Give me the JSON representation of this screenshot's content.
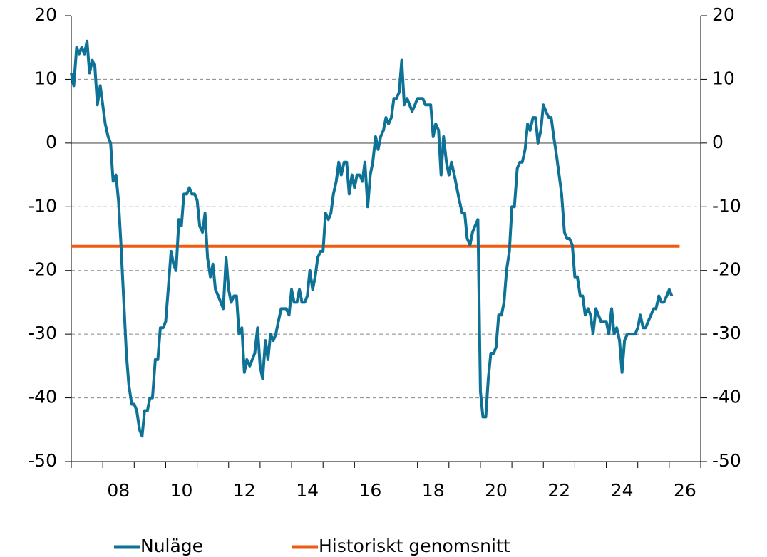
{
  "chart_data": {
    "type": "line",
    "xlim": [
      2007,
      2027
    ],
    "xticks": [
      {
        "value": 2008.5,
        "label": "08"
      },
      {
        "value": 2010.5,
        "label": "10"
      },
      {
        "value": 2012.5,
        "label": "12"
      },
      {
        "value": 2014.5,
        "label": "14"
      },
      {
        "value": 2016.5,
        "label": "16"
      },
      {
        "value": 2018.5,
        "label": "18"
      },
      {
        "value": 2020.5,
        "label": "20"
      },
      {
        "value": 2022.5,
        "label": "22"
      },
      {
        "value": 2024.5,
        "label": "24"
      },
      {
        "value": 2026.5,
        "label": "26"
      }
    ],
    "xtick_marks": [
      2007,
      2008,
      2009,
      2010,
      2011,
      2012,
      2013,
      2014,
      2015,
      2016,
      2017,
      2018,
      2019,
      2020,
      2021,
      2022,
      2023,
      2024,
      2025,
      2026,
      2027
    ],
    "ylim": [
      -50,
      20
    ],
    "yticks": [
      -50,
      -40,
      -30,
      -20,
      -10,
      0,
      10,
      20
    ],
    "y2lim": [
      -50,
      20
    ],
    "y2ticks": [
      -50,
      -40,
      -30,
      -20,
      -10,
      0,
      10,
      20
    ],
    "grid": true,
    "legend": "bottom",
    "series": [
      {
        "name": "Nuläge",
        "color": "#0e7196",
        "x": [
          2007.0,
          2007.08,
          2007.17,
          2007.25,
          2007.33,
          2007.42,
          2007.5,
          2007.58,
          2007.67,
          2007.75,
          2007.83,
          2007.92,
          2008.0,
          2008.08,
          2008.17,
          2008.25,
          2008.33,
          2008.42,
          2008.5,
          2008.58,
          2008.67,
          2008.75,
          2008.83,
          2008.92,
          2009.0,
          2009.08,
          2009.17,
          2009.25,
          2009.33,
          2009.42,
          2009.5,
          2009.58,
          2009.67,
          2009.75,
          2009.83,
          2009.92,
          2010.0,
          2010.08,
          2010.17,
          2010.25,
          2010.33,
          2010.42,
          2010.5,
          2010.58,
          2010.67,
          2010.75,
          2010.83,
          2010.92,
          2011.0,
          2011.08,
          2011.17,
          2011.25,
          2011.33,
          2011.42,
          2011.5,
          2011.58,
          2011.67,
          2011.75,
          2011.83,
          2011.92,
          2012.0,
          2012.08,
          2012.17,
          2012.25,
          2012.33,
          2012.42,
          2012.5,
          2012.58,
          2012.67,
          2012.75,
          2012.83,
          2012.92,
          2013.0,
          2013.08,
          2013.17,
          2013.25,
          2013.33,
          2013.42,
          2013.5,
          2013.58,
          2013.67,
          2013.75,
          2013.83,
          2013.92,
          2014.0,
          2014.08,
          2014.17,
          2014.25,
          2014.33,
          2014.42,
          2014.5,
          2014.58,
          2014.67,
          2014.75,
          2014.83,
          2014.92,
          2015.0,
          2015.08,
          2015.17,
          2015.25,
          2015.33,
          2015.42,
          2015.5,
          2015.58,
          2015.67,
          2015.75,
          2015.83,
          2015.92,
          2016.0,
          2016.08,
          2016.17,
          2016.25,
          2016.33,
          2016.42,
          2016.5,
          2016.58,
          2016.67,
          2016.75,
          2016.83,
          2016.92,
          2017.0,
          2017.08,
          2017.17,
          2017.25,
          2017.33,
          2017.42,
          2017.5,
          2017.58,
          2017.67,
          2017.75,
          2017.83,
          2017.92,
          2018.0,
          2018.08,
          2018.17,
          2018.25,
          2018.33,
          2018.42,
          2018.5,
          2018.58,
          2018.67,
          2018.75,
          2018.83,
          2018.92,
          2019.0,
          2019.08,
          2019.17,
          2019.25,
          2019.33,
          2019.42,
          2019.5,
          2019.58,
          2019.67,
          2019.75,
          2019.83,
          2019.92,
          2020.0,
          2020.08,
          2020.17,
          2020.25,
          2020.33,
          2020.42,
          2020.5,
          2020.58,
          2020.67,
          2020.75,
          2020.83,
          2020.92,
          2021.0,
          2021.08,
          2021.17,
          2021.25,
          2021.33,
          2021.42,
          2021.5,
          2021.58,
          2021.67,
          2021.75,
          2021.83,
          2021.92,
          2022.0,
          2022.08,
          2022.17,
          2022.25,
          2022.33,
          2022.42,
          2022.5,
          2022.58,
          2022.67,
          2022.75,
          2022.83,
          2022.92,
          2023.0,
          2023.08,
          2023.17,
          2023.25,
          2023.33,
          2023.42,
          2023.5,
          2023.58,
          2023.67,
          2023.75,
          2023.83,
          2023.92,
          2024.0,
          2024.08,
          2024.17,
          2024.25,
          2024.33,
          2024.42,
          2024.5,
          2024.58,
          2024.67,
          2024.75,
          2024.83,
          2024.92,
          2025.0,
          2025.08,
          2025.17,
          2025.25,
          2025.33,
          2025.42,
          2025.5,
          2025.58,
          2025.67,
          2025.75,
          2025.83,
          2025.92,
          2026.0,
          2026.08
        ],
        "values": [
          11,
          9,
          15,
          14,
          15,
          14,
          16,
          11,
          13,
          12,
          6,
          9,
          6,
          3,
          1,
          0,
          -6,
          -5,
          -9,
          -16,
          -25,
          -33,
          -38,
          -41,
          -41,
          -42,
          -45,
          -46,
          -42,
          -42,
          -40,
          -40,
          -34,
          -34,
          -29,
          -29,
          -28,
          -23,
          -17,
          -19,
          -20,
          -12,
          -13,
          -8,
          -8,
          -7,
          -8,
          -8,
          -9,
          -13,
          -14,
          -11,
          -18,
          -21,
          -19,
          -23,
          -24,
          -25,
          -26,
          -18,
          -23,
          -25,
          -24,
          -24,
          -30,
          -29,
          -36,
          -34,
          -35,
          -34,
          -33,
          -29,
          -35,
          -37,
          -31,
          -34,
          -30,
          -31,
          -30,
          -28,
          -26,
          -26,
          -26,
          -27,
          -23,
          -25,
          -25,
          -23,
          -25,
          -25,
          -24,
          -20,
          -23,
          -21,
          -18,
          -17,
          -17,
          -11,
          -12,
          -11,
          -8,
          -6,
          -3,
          -5,
          -3,
          -3,
          -8,
          -5,
          -7,
          -5,
          -5,
          -6,
          -3,
          -10,
          -5,
          -3,
          1,
          -1,
          1,
          2,
          4,
          3,
          4,
          7,
          7,
          8,
          13,
          6,
          7,
          6,
          5,
          6,
          7,
          7,
          7,
          6,
          6,
          6,
          1,
          3,
          2,
          -5,
          1,
          -3,
          -5,
          -3,
          -5,
          -7,
          -9,
          -11,
          -11,
          -15,
          -16,
          -14,
          -13,
          -12,
          -39,
          -43,
          -43,
          -37,
          -33,
          -33,
          -32,
          -27,
          -27,
          -25,
          -20,
          -17,
          -10,
          -10,
          -4,
          -3,
          -3,
          -1,
          3,
          2,
          4,
          4,
          0,
          2,
          6,
          5,
          4,
          4,
          1,
          -2,
          -5,
          -8,
          -14,
          -15,
          -15,
          -16,
          -21,
          -21,
          -24,
          -24,
          -27,
          -26,
          -27,
          -30,
          -26,
          -27,
          -28,
          -28,
          -28,
          -30,
          -26,
          -30,
          -29,
          -31,
          -36,
          -31,
          -30,
          -30,
          -30,
          -30,
          -29,
          -27,
          -29,
          -29,
          -28,
          -27,
          -26,
          -26,
          -24,
          -25,
          -25,
          -24,
          -23,
          -24
        ]
      },
      {
        "name": "Historiskt genomsnitt",
        "color": "#f25a0f",
        "x": [
          2007.0,
          2026.33
        ],
        "values": [
          -16.2,
          -16.2
        ]
      }
    ]
  }
}
